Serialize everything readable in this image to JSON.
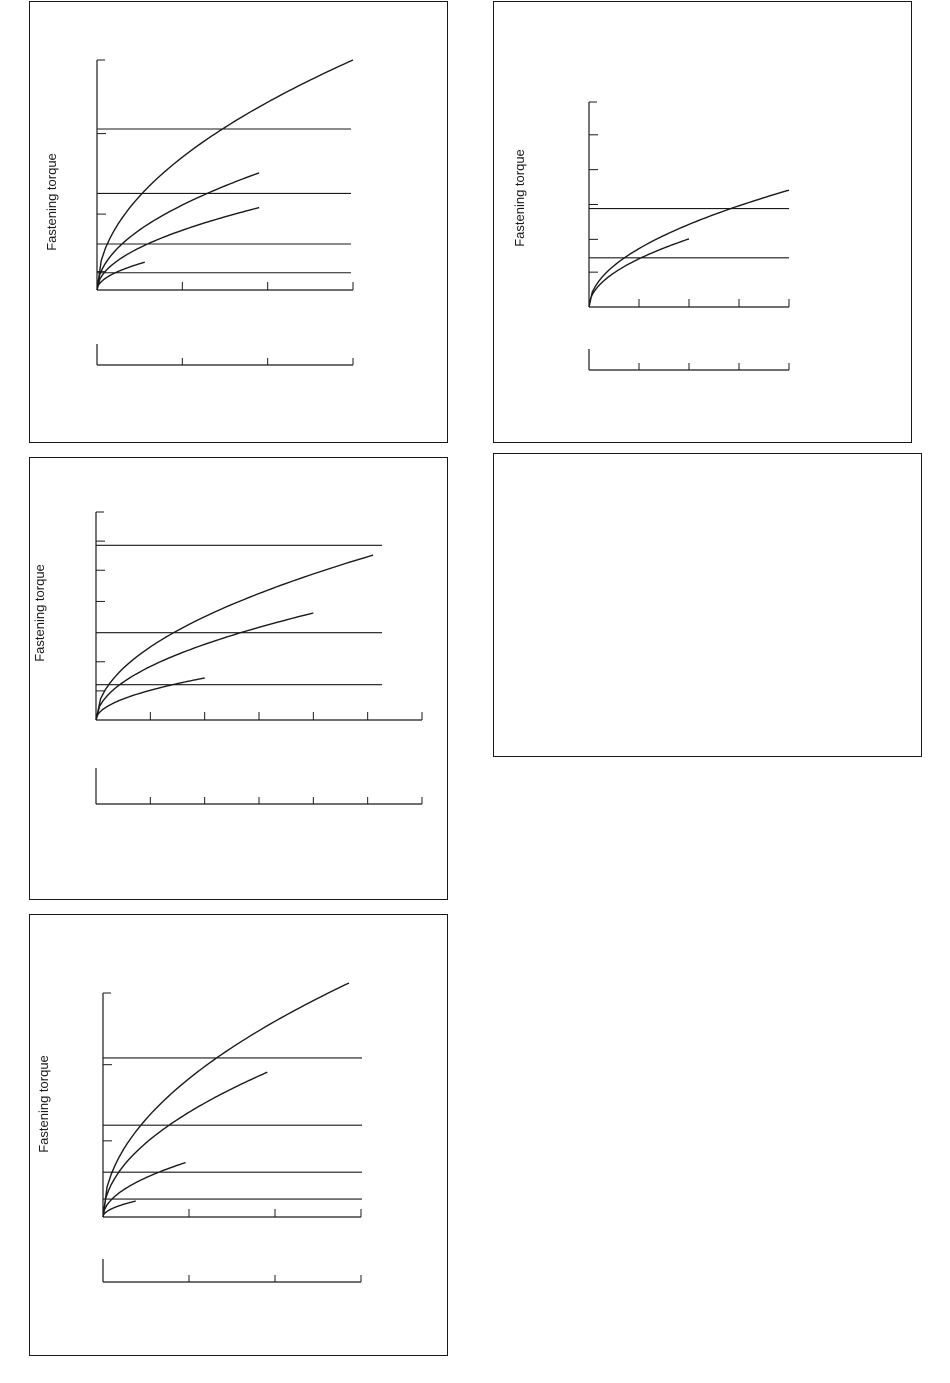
{
  "chart_data": [
    {
      "type": "line",
      "ylabel": "Fastening torque",
      "xlim": [
        0,
        3
      ],
      "ylim": [
        0,
        1
      ],
      "x_ticks": 3,
      "y_ticks": [
        0.08,
        0.33,
        0.68
      ],
      "ref_lines": [
        0.075,
        0.2,
        0.42,
        0.7
      ],
      "curves": [
        {
          "k": 1.0,
          "x_end": 3.0
        },
        {
          "k": 0.64,
          "x_end": 1.9
        },
        {
          "k": 0.45,
          "x_end": 1.9
        },
        {
          "k": 0.28,
          "x_end": 0.56
        }
      ],
      "second_axis": {
        "ticks": 3
      }
    },
    {
      "type": "line",
      "ylabel": "Fastening torque",
      "xlim": [
        0,
        4
      ],
      "ylim": [
        0,
        1
      ],
      "x_ticks": 4,
      "y_ticks": [
        0.17,
        0.33,
        0.5,
        0.67,
        0.84
      ],
      "ref_lines": [
        0.24,
        0.48
      ],
      "curves": [
        {
          "k": 0.57,
          "x_end": 4.0
        },
        {
          "k": 0.47,
          "x_end": 2.0
        }
      ],
      "second_axis": {
        "ticks": 4
      }
    },
    {
      "type": "line",
      "ylabel": "Fastening torque",
      "xlim": [
        0,
        6
      ],
      "ylim": [
        0,
        1
      ],
      "x_ticks": 6,
      "y_ticks": [
        0.14,
        0.28,
        0.57,
        0.72,
        0.86
      ],
      "ref_lines": [
        0.17,
        0.42,
        0.84
      ],
      "curves": [
        {
          "k": 0.86,
          "x_end": 5.1
        },
        {
          "k": 0.63,
          "x_end": 4.0
        },
        {
          "k": 0.35,
          "x_end": 2.0
        }
      ],
      "second_axis": {
        "ticks": 6
      }
    },
    {
      "type": "line",
      "ylabel": "Fastening torque",
      "xlim": [
        0,
        3
      ],
      "ylim": [
        0,
        1
      ],
      "x_ticks": 3,
      "y_ticks": [
        0.34,
        0.68
      ],
      "ref_lines": [
        0.08,
        0.2,
        0.41,
        0.71
      ],
      "curves": [
        {
          "k": 1.07,
          "x_end": 2.86
        },
        {
          "k": 0.81,
          "x_end": 1.91
        },
        {
          "k": 0.43,
          "x_end": 0.96
        },
        {
          "k": 0.2,
          "x_end": 0.38
        }
      ],
      "second_axis": {
        "ticks": 3
      }
    }
  ]
}
